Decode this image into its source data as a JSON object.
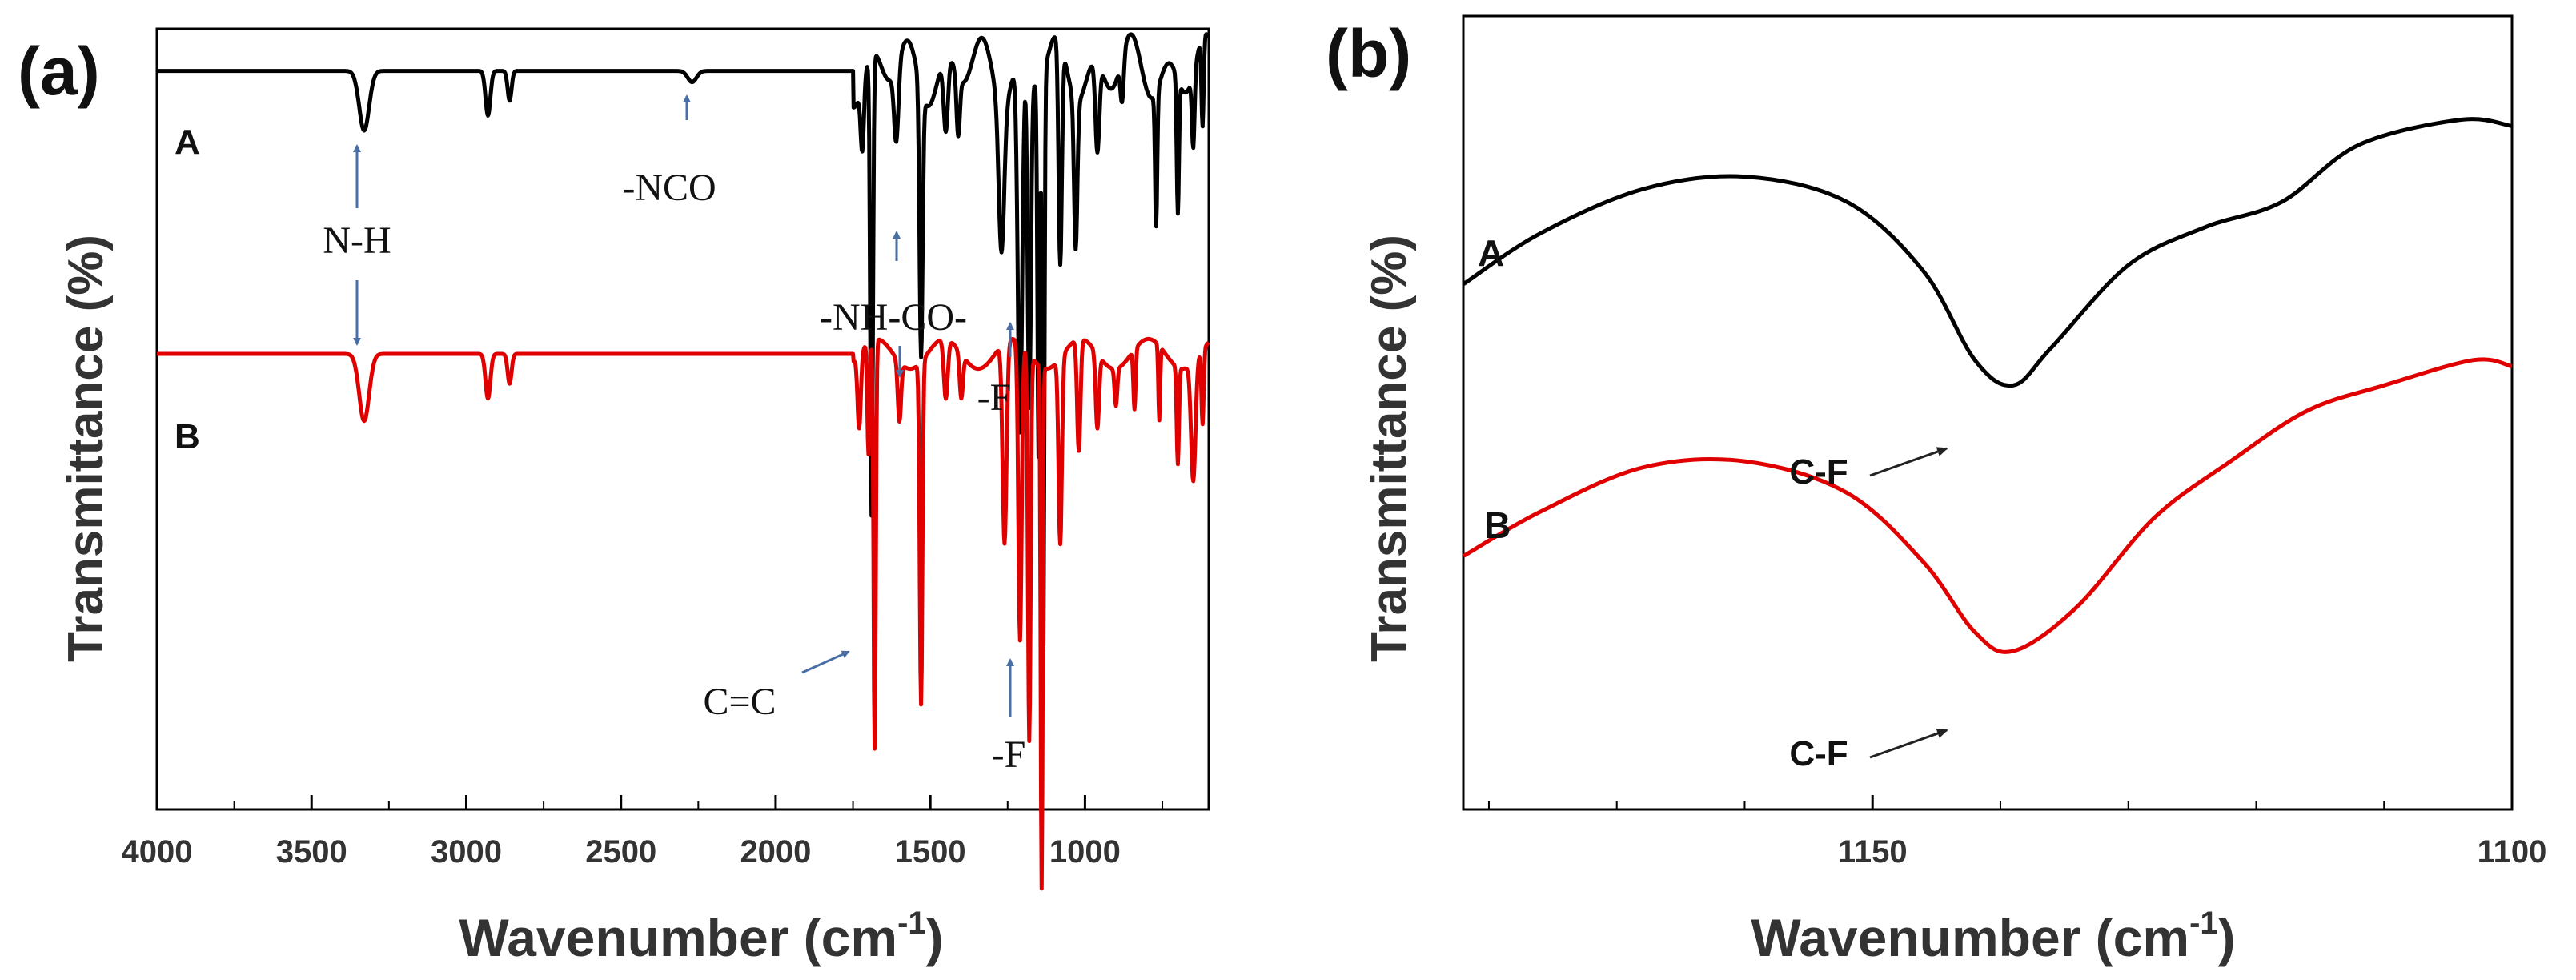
{
  "colors": {
    "series_A": "#000000",
    "series_B": "#e00000",
    "arrow_blue": "#4a6fa5",
    "arrow_black": "#222222"
  },
  "chart_data": [
    {
      "id": "a",
      "type": "line",
      "panel_label": "(a)",
      "xlabel_main": "Wavenumber (cm",
      "xlabel_sup": "-1",
      "xlabel_close": ")",
      "ylabel": "Transmittance (%)",
      "xlim": [
        4000,
        600
      ],
      "ylim": [
        0,
        100
      ],
      "xticks": [
        4000,
        3500,
        3000,
        2500,
        2000,
        1500,
        1000
      ],
      "xtick_labels": [
        "4000",
        "3500",
        "3000",
        "2500",
        "2000",
        "1500",
        "1000"
      ],
      "series": [
        {
          "name": "A",
          "color_key": "series_A",
          "baseline": 98,
          "wiggles": [
            [
              1300,
              2,
              250
            ],
            [
              820,
              3,
              120
            ]
          ],
          "peaks": [
            [
              3330,
              8,
              45
            ],
            [
              2930,
              6,
              22
            ],
            [
              2860,
              4,
              18
            ],
            [
              2270,
              1.5,
              40
            ],
            [
              1720,
              9,
              15
            ],
            [
              1690,
              62,
              12
            ],
            [
              1610,
              10,
              20
            ],
            [
              1530,
              36,
              14
            ],
            [
              1450,
              10,
              20
            ],
            [
              1410,
              8,
              15
            ],
            [
              1270,
              20,
              25
            ],
            [
              1210,
              50,
              20
            ],
            [
              1180,
              45,
              15
            ],
            [
              1150,
              50,
              10
            ],
            [
              1135,
              80,
              10
            ],
            [
              1080,
              30,
              15
            ],
            [
              1030,
              20,
              15
            ],
            [
              960,
              12,
              18
            ],
            [
              880,
              6,
              15
            ],
            [
              770,
              18,
              10
            ],
            [
              700,
              18,
              10
            ],
            [
              650,
              10,
              12
            ],
            [
              620,
              12,
              10
            ]
          ]
        },
        {
          "name": "B",
          "color_key": "series_B",
          "baseline": 60,
          "wiggles": [
            [
              1400,
              2,
              220
            ]
          ],
          "peaks": [
            [
              3330,
              9,
              45
            ],
            [
              2930,
              6,
              22
            ],
            [
              2860,
              4,
              18
            ],
            [
              1730,
              10,
              15
            ],
            [
              1700,
              15,
              10
            ],
            [
              1680,
              55,
              10
            ],
            [
              1600,
              8,
              15
            ],
            [
              1530,
              46,
              12
            ],
            [
              1450,
              8,
              18
            ],
            [
              1400,
              6,
              15
            ],
            [
              1260,
              27,
              18
            ],
            [
              1210,
              40,
              15
            ],
            [
              1180,
              52,
              12
            ],
            [
              1140,
              70,
              9
            ],
            [
              1080,
              25,
              15
            ],
            [
              1020,
              15,
              15
            ],
            [
              960,
              10,
              15
            ],
            [
              900,
              5,
              12
            ],
            [
              840,
              8,
              10
            ],
            [
              760,
              10,
              8
            ],
            [
              700,
              13,
              10
            ],
            [
              650,
              16,
              20
            ],
            [
              620,
              10,
              10
            ]
          ]
        }
      ],
      "annotations": [
        {
          "text": "N-H",
          "style": "serif"
        },
        {
          "text": "-NCO",
          "style": "serif"
        },
        {
          "text": "-NH-CO-",
          "style": "serif"
        },
        {
          "text": "-F",
          "style": "serif"
        },
        {
          "text": "C=C",
          "style": "serif"
        },
        {
          "text": "-F",
          "style": "serif"
        }
      ]
    },
    {
      "id": "b",
      "type": "line",
      "panel_label": "(b)",
      "xlabel_main": "Wavenumber (cm",
      "xlabel_sup": "-1",
      "xlabel_close": ")",
      "ylabel": "Transmittance (%)",
      "xlim": [
        1182,
        1100
      ],
      "ylim": [
        0,
        100
      ],
      "xticks": [
        1150,
        1100
      ],
      "xtick_labels": [
        "1150",
        "1100"
      ],
      "series": [
        {
          "name": "A",
          "color_key": "series_A",
          "points": [
            [
              1182,
              69
            ],
            [
              1176,
              77
            ],
            [
              1168,
              84
            ],
            [
              1160,
              86
            ],
            [
              1152,
              82
            ],
            [
              1146,
              71
            ],
            [
              1142,
              57
            ],
            [
              1139,
              53
            ],
            [
              1136,
              59
            ],
            [
              1130,
              72
            ],
            [
              1124,
              78
            ],
            [
              1118,
              82
            ],
            [
              1112,
              91
            ],
            [
              1104,
              95
            ],
            [
              1100,
              94
            ]
          ]
        },
        {
          "name": "B",
          "color_key": "series_B",
          "points": [
            [
              1182,
              26
            ],
            [
              1176,
              33
            ],
            [
              1168,
              40
            ],
            [
              1160,
              41
            ],
            [
              1152,
              36
            ],
            [
              1146,
              25
            ],
            [
              1142,
              14
            ],
            [
              1139,
              11
            ],
            [
              1134,
              18
            ],
            [
              1128,
              32
            ],
            [
              1122,
              41
            ],
            [
              1116,
              49
            ],
            [
              1110,
              53
            ],
            [
              1103,
              57
            ],
            [
              1100,
              56
            ]
          ]
        }
      ],
      "annotations": [
        {
          "text": "C-F",
          "style": "sans"
        },
        {
          "text": "C-F",
          "style": "sans"
        }
      ]
    }
  ]
}
